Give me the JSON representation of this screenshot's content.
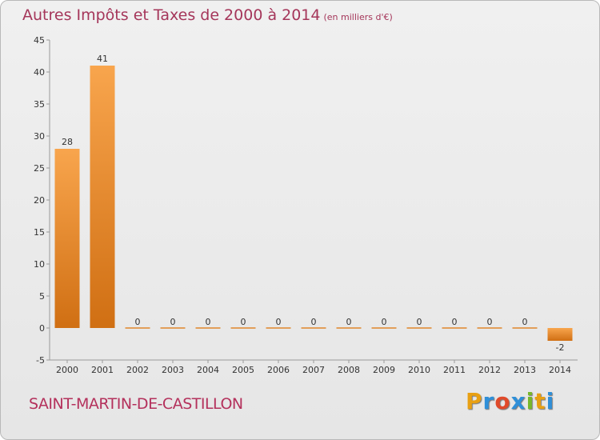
{
  "header": {
    "title": "Autres Impôts et Taxes de 2000 à 2014",
    "subtitle": "(en milliers d'€)"
  },
  "footer": {
    "commune": "SAINT-MARTIN-DE-CASTILLON",
    "logo_letters": [
      "P",
      "r",
      "o",
      "x",
      "i",
      "t",
      "i"
    ],
    "logo_colors": [
      "#e8a013",
      "#2f8fd8",
      "#e04a2a",
      "#2f8fd8",
      "#77b82a",
      "#e8a013",
      "#2f8fd8"
    ]
  },
  "chart_data": {
    "type": "bar",
    "categories": [
      "2000",
      "2001",
      "2002",
      "2003",
      "2004",
      "2005",
      "2006",
      "2007",
      "2008",
      "2009",
      "2010",
      "2011",
      "2012",
      "2013",
      "2014"
    ],
    "values": [
      28,
      41,
      0,
      0,
      0,
      0,
      0,
      0,
      0,
      0,
      0,
      0,
      0,
      0,
      -2
    ],
    "data_labels": [
      "28",
      "41",
      "0",
      "0",
      "0",
      "0",
      "0",
      "0",
      "0",
      "0",
      "0",
      "0",
      "0",
      "0",
      "-2"
    ],
    "yticks": [
      -5,
      0,
      5,
      10,
      15,
      20,
      25,
      30,
      35,
      40,
      45
    ],
    "ylim": [
      -5,
      45
    ],
    "grid": false,
    "colors": {
      "bar_light": "#f8a54d",
      "bar_dark": "#d06f13"
    }
  }
}
